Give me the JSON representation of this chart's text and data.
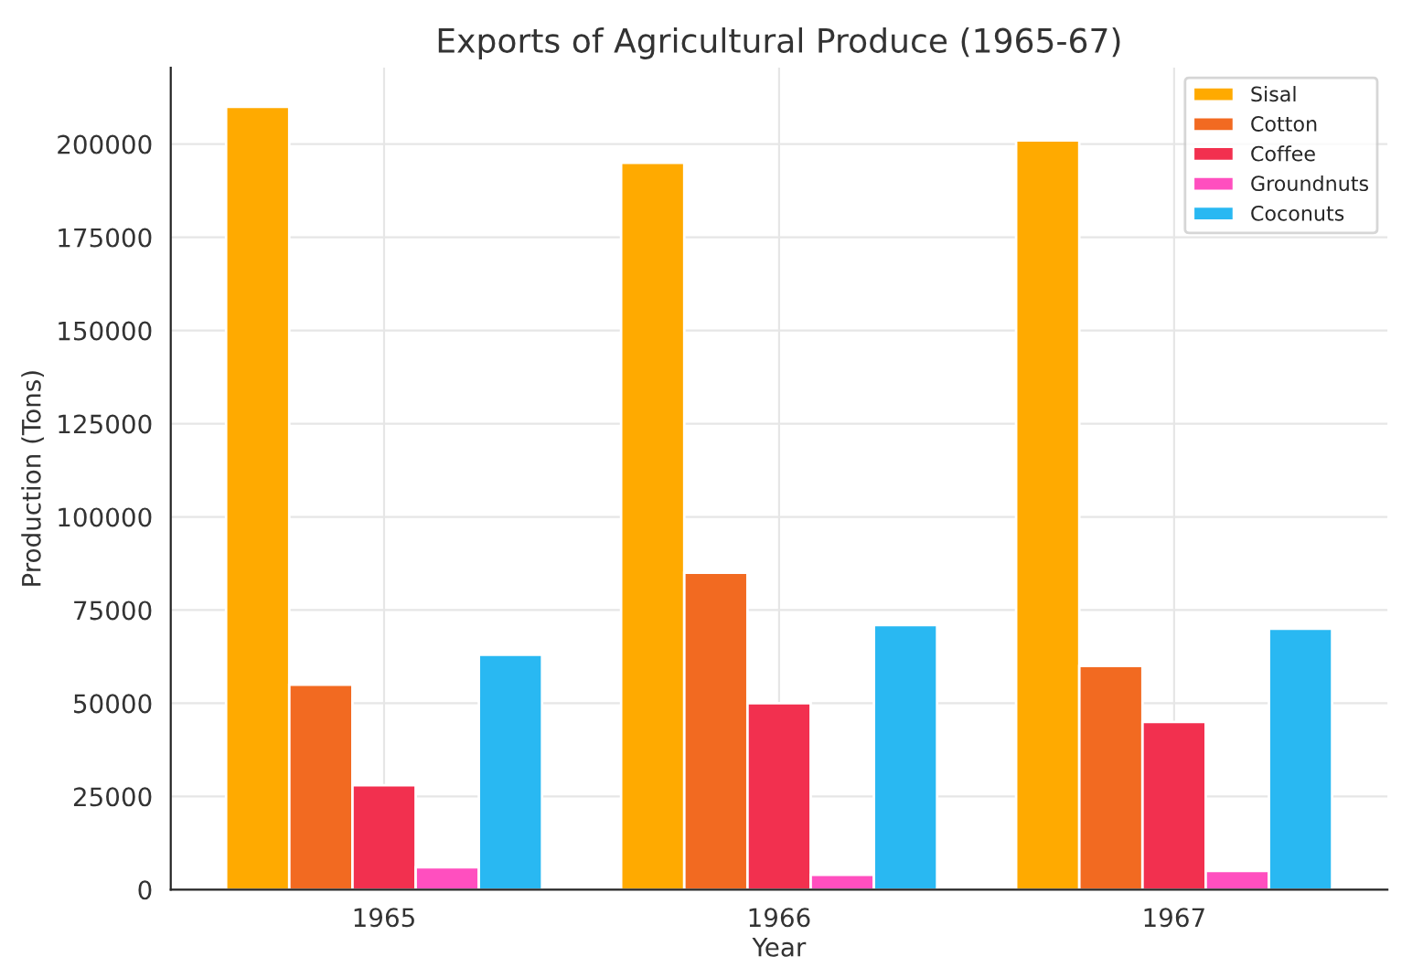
{
  "chart_data": {
    "type": "bar",
    "title": "Exports of Agricultural Produce (1965-67)",
    "xlabel": "Year",
    "ylabel": "Production (Tons)",
    "categories": [
      "1965",
      "1966",
      "1967"
    ],
    "series": [
      {
        "name": "Sisal",
        "color": "#ffaa00",
        "values": [
          210000,
          195000,
          201000
        ]
      },
      {
        "name": "Cotton",
        "color": "#f26a21",
        "values": [
          55000,
          85000,
          60000
        ]
      },
      {
        "name": "Coffee",
        "color": "#f2304f",
        "values": [
          28000,
          50000,
          45000
        ]
      },
      {
        "name": "Groundnuts",
        "color": "#ff4fbf",
        "values": [
          6000,
          4000,
          5000
        ]
      },
      {
        "name": "Coconuts",
        "color": "#29b8f2",
        "values": [
          63000,
          71000,
          70000
        ]
      }
    ],
    "ylim": [
      0,
      220500
    ],
    "yticks": [
      0,
      25000,
      50000,
      75000,
      100000,
      125000,
      150000,
      175000,
      200000
    ],
    "grid": true,
    "legend": "top right"
  }
}
